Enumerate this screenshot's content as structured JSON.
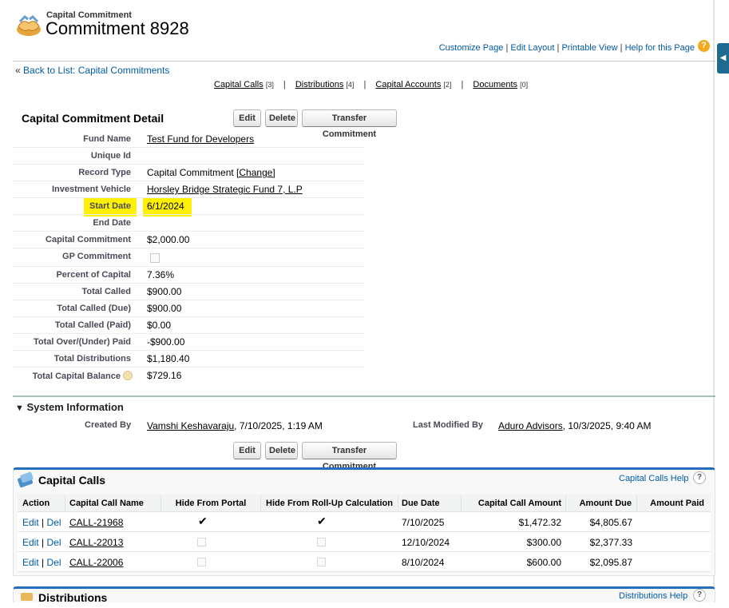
{
  "header": {
    "object_type": "Capital Commitment",
    "record_name": "Commitment 8928",
    "links": [
      "Customize Page",
      "Edit Layout",
      "Printable View",
      "Help for this Page"
    ],
    "link_separator": "|",
    "back_link": "Back to List: Capital Commitments",
    "back_prefix": "«"
  },
  "related_nav": [
    {
      "label": "Capital Calls",
      "count": "[3]"
    },
    {
      "label": "Distributions",
      "count": "[4]"
    },
    {
      "label": "Capital Accounts",
      "count": "[2]"
    },
    {
      "label": "Documents",
      "count": "[0]"
    }
  ],
  "detail": {
    "title": "Capital Commitment Detail",
    "buttons": {
      "edit": "Edit",
      "delete": "Delete",
      "transfer": "Transfer Commitment"
    },
    "fields": [
      {
        "label": "Fund Name",
        "value": "Test Fund for Developers",
        "link": true
      },
      {
        "label": "Unique Id",
        "value": ""
      },
      {
        "label": "Record Type",
        "value": "Capital Commitment",
        "extra": "[Change]"
      },
      {
        "label": "Investment Vehicle",
        "value": "Horsley Bridge Strategic Fund 7, L.P",
        "link": true
      },
      {
        "label": "Start Date",
        "value": "6/1/2024"
      },
      {
        "label": "End Date",
        "value": ""
      },
      {
        "label": "Capital Commitment",
        "value": "$2,000.00"
      },
      {
        "label": "GP Commitment",
        "value": "",
        "checkbox": true
      },
      {
        "label": "Percent of Capital",
        "value": "7.36%"
      },
      {
        "label": "Total Called",
        "value": "$900.00"
      },
      {
        "label": "Total Called (Due)",
        "value": "$900.00"
      },
      {
        "label": "Total Called (Paid)",
        "value": "$0.00"
      },
      {
        "label": "Total Over/(Under) Paid",
        "value": "-$900.00"
      },
      {
        "label": "Total Distributions",
        "value": "$1,180.40"
      },
      {
        "label": "Total Capital Balance",
        "value": "$729.16",
        "info": true
      }
    ],
    "highlight_color": "#fff200"
  },
  "system_info": {
    "title": "System Information",
    "created_by_label": "Created By",
    "created_by_user": "Vamshi Keshavaraju",
    "created_by_time": ", 7/10/2025, 1:19 AM",
    "modified_by_label": "Last Modified By",
    "modified_by_user": "Aduro Advisors",
    "modified_by_time": ", 10/3/2025, 9:40 AM"
  },
  "capital_calls": {
    "title": "Capital Calls",
    "help": "Capital Calls Help",
    "help_icon": "?",
    "columns": [
      "Action",
      "Capital Call Name",
      "Hide From Portal",
      "Hide From Roll-Up Calculation",
      "Due Date",
      "Capital Call Amount",
      "Amount Due",
      "Amount Paid"
    ],
    "action_edit": "Edit",
    "action_sep": "|",
    "action_del": "Del",
    "rows": [
      {
        "name": "CALL-21968",
        "hide_portal": true,
        "hide_rollup": true,
        "due_date": "7/10/2025",
        "amount": "$1,472.32",
        "amount_due": "$4,805.67",
        "amount_paid": ""
      },
      {
        "name": "CALL-22013",
        "hide_portal": false,
        "hide_rollup": false,
        "due_date": "12/10/2024",
        "amount": "$300.00",
        "amount_due": "$2,377.33",
        "amount_paid": ""
      },
      {
        "name": "CALL-22006",
        "hide_portal": false,
        "hide_rollup": false,
        "due_date": "8/10/2024",
        "amount": "$600.00",
        "amount_due": "$2,095.87",
        "amount_paid": ""
      }
    ]
  },
  "distributions": {
    "title": "Distributions",
    "help": "Distributions Help"
  },
  "icons": {
    "help": "?",
    "check": "✔",
    "collapse": "▼",
    "sidebar_toggle": "◀"
  }
}
